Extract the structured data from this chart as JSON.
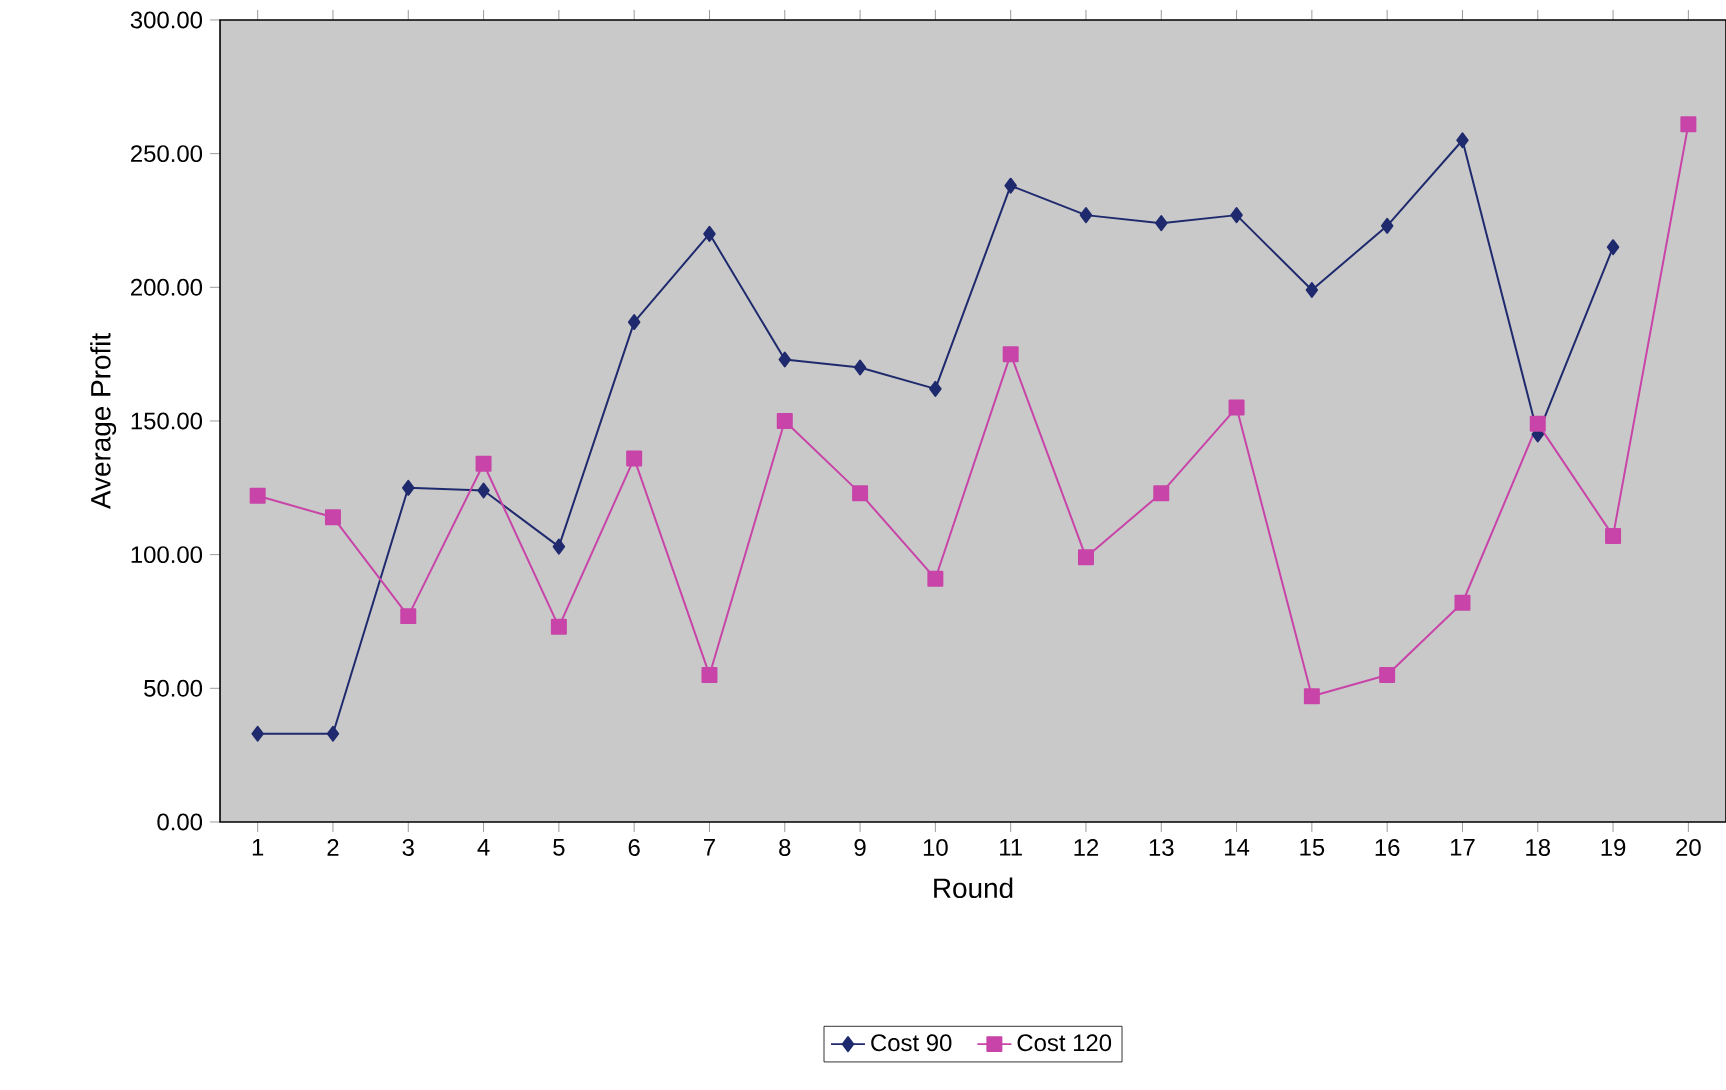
{
  "chart_data": {
    "type": "line",
    "xlabel": "Round",
    "ylabel": "Average Profit",
    "categories": [
      "1",
      "2",
      "3",
      "4",
      "5",
      "6",
      "7",
      "8",
      "9",
      "10",
      "11",
      "12",
      "13",
      "14",
      "15",
      "16",
      "17",
      "18",
      "19",
      "20"
    ],
    "series": [
      {
        "name": "Cost 90",
        "color": "#1f2a6e",
        "marker": "diamond",
        "values": [
          33,
          33,
          125,
          124,
          103,
          187,
          220,
          173,
          170,
          162,
          238,
          227,
          224,
          227,
          199,
          223,
          255,
          145,
          215,
          null
        ]
      },
      {
        "name": "Cost 120",
        "color": "#c844a8",
        "marker": "square",
        "values": [
          122,
          114,
          77,
          134,
          73,
          136,
          55,
          150,
          123,
          91,
          175,
          99,
          123,
          155,
          47,
          55,
          82,
          149,
          107,
          261
        ]
      }
    ],
    "ylim": [
      0,
      300
    ],
    "yticks": [
      {
        "value": 0,
        "label": "0.00"
      },
      {
        "value": 50,
        "label": "50.00"
      },
      {
        "value": 100,
        "label": "100.00"
      },
      {
        "value": 150,
        "label": "150.00"
      },
      {
        "value": 200,
        "label": "200.00"
      },
      {
        "value": 250,
        "label": "250.00"
      },
      {
        "value": 300,
        "label": "300.00"
      }
    ],
    "grid": false,
    "legend": "bottom",
    "line_style": "solid"
  }
}
